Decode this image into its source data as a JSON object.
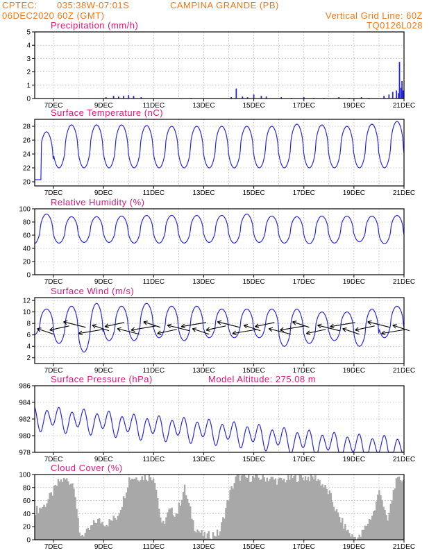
{
  "header": {
    "source": "CPTEC:",
    "coords": "035:38W-07:01S",
    "station": "CAMPINA GRANDE (PB)",
    "run": "06DEC2020 60Z (GMT)",
    "grid_note": "Vertical Grid Line: 60Z",
    "model_code": "TQ0126L028"
  },
  "date_labels": [
    "7DEC",
    "9DEC",
    "11DEC",
    "13DEC",
    "15DEC",
    "17DEC",
    "19DEC",
    "21DEC"
  ],
  "colors": {
    "header": "#f07818",
    "title": "#e0157a",
    "series": "#2727e0",
    "cloud": "#a8a8a8"
  },
  "chart_data": [
    {
      "type": "bar",
      "id": "precip",
      "title": "Precipitation (mm/h)",
      "ylim": [
        0,
        5
      ],
      "yticks": [
        0,
        1,
        2,
        3,
        4,
        5
      ],
      "xlim": [
        6.25,
        21
      ],
      "grid": true,
      "x": [
        9.1,
        9.4,
        9.6,
        9.8,
        10.0,
        10.2,
        10.5,
        12.5,
        14.1,
        14.3,
        14.55,
        14.75,
        15.0,
        15.3,
        15.5,
        16.1,
        16.5,
        17.0,
        17.4,
        17.8,
        18.4,
        18.8,
        19.3,
        19.6,
        20.2,
        20.4,
        20.55,
        20.7,
        20.78,
        20.82,
        20.88,
        20.92,
        20.96
      ],
      "values": [
        0.1,
        0.2,
        0.15,
        0.2,
        0.25,
        0.2,
        0.1,
        0.05,
        0.1,
        0.75,
        0.15,
        0.1,
        0.3,
        0.2,
        0.15,
        0.1,
        0.05,
        0.1,
        0.05,
        0.05,
        0.1,
        0.05,
        0.1,
        0.05,
        0.2,
        0.3,
        0.5,
        0.6,
        0.4,
        2.75,
        0.8,
        1.3,
        0.6
      ]
    },
    {
      "type": "line",
      "id": "temp",
      "title": "Surface Temperature (nC)",
      "ylim": [
        19.4,
        29
      ],
      "yticks": [
        20,
        22,
        24,
        26,
        28
      ],
      "xlim": [
        6.25,
        21
      ],
      "grid": true,
      "diurnal": {
        "min": [
          21,
          22,
          22,
          22,
          22,
          22,
          22,
          22,
          22,
          22,
          22,
          22,
          22,
          22,
          22
        ],
        "max": [
          27.2,
          28.2,
          28.2,
          28.2,
          28.1,
          28,
          28,
          28,
          28,
          28,
          28.3,
          28.2,
          28,
          28.3,
          28.7
        ]
      }
    },
    {
      "type": "line",
      "id": "rh",
      "title": "Relative Humidity (%)",
      "ylim": [
        0,
        100
      ],
      "yticks": [
        0,
        20,
        40,
        60,
        80,
        100
      ],
      "xlim": [
        6.25,
        21
      ],
      "grid": true,
      "diurnal": {
        "min": [
          47,
          48,
          49,
          49,
          48,
          48,
          48,
          49,
          48,
          49,
          48,
          47,
          48,
          50,
          47
        ],
        "max": [
          92,
          88,
          88,
          89,
          90,
          90,
          90,
          90,
          92,
          89,
          88,
          89,
          89,
          89,
          90
        ]
      }
    },
    {
      "type": "line",
      "id": "wind",
      "title": "Surface Wind (m/s)",
      "ylim": [
        1,
        12.5
      ],
      "yticks": [
        2,
        4,
        6,
        8,
        10,
        12
      ],
      "xlim": [
        6.25,
        21
      ],
      "grid": true,
      "diurnal": {
        "min": [
          6,
          4.5,
          3,
          5,
          5,
          5.5,
          5,
          5.5,
          5.5,
          5.5,
          4,
          4.5,
          5,
          4,
          5.5
        ],
        "max": [
          10.5,
          11,
          11.5,
          11,
          11.5,
          11,
          11,
          10.5,
          10.5,
          10.5,
          10.5,
          10,
          10,
          10.5,
          11
        ]
      },
      "arrow_times": [
        6.35,
        6.85,
        7.4,
        8.0,
        8.55,
        9.05,
        9.55,
        10.1,
        10.6,
        11.15,
        11.55,
        12.1,
        12.55,
        13.1,
        13.55,
        14.15,
        14.6,
        15.05,
        15.6,
        16.05,
        16.55,
        17.1,
        17.55,
        18.05,
        18.55,
        19.05,
        19.55,
        20.1,
        20.55
      ]
    },
    {
      "type": "line",
      "id": "pres",
      "title": "Surface Pressure (hPa)",
      "extra_label": "Model Altitude: 275.08 m",
      "ylim": [
        978,
        986
      ],
      "yticks": [
        978,
        980,
        982,
        984,
        986
      ],
      "xlim": [
        6.25,
        21
      ],
      "grid": true,
      "trend": [
        982.2,
        982.0,
        981.8,
        981.6,
        981.2,
        981.0,
        980.8,
        980.6,
        980.3,
        980.0,
        979.6,
        979.3,
        979.0,
        978.8,
        978.6,
        978.6
      ],
      "amplitude": 1.4
    },
    {
      "type": "bar",
      "id": "cloud",
      "title": "Cloud Cover (%)",
      "ylim": [
        0,
        100
      ],
      "yticks": [
        0,
        20,
        40,
        60,
        80,
        100
      ],
      "xlim": [
        6.25,
        21
      ],
      "grid": true,
      "profile_x": [
        6.25,
        6.6,
        6.9,
        7.2,
        7.5,
        7.8,
        8.0,
        8.3,
        8.7,
        9.1,
        9.5,
        9.75,
        10.0,
        10.5,
        11.0,
        11.3,
        11.6,
        11.9,
        12.2,
        12.6,
        13.0,
        13.3,
        13.6,
        14.0,
        14.3,
        14.5,
        15.0,
        15.5,
        16.0,
        16.5,
        17.0,
        17.5,
        18.0,
        18.3,
        18.6,
        18.9,
        19.2,
        19.5,
        19.8,
        20.0,
        20.3,
        20.6,
        20.8,
        21.0
      ],
      "profile_y": [
        45,
        52,
        70,
        90,
        92,
        85,
        8,
        10,
        30,
        25,
        35,
        60,
        95,
        96,
        97,
        20,
        45,
        40,
        80,
        20,
        5,
        8,
        10,
        70,
        98,
        95,
        95,
        95,
        90,
        95,
        96,
        95,
        70,
        40,
        20,
        5,
        3,
        25,
        45,
        80,
        25,
        85,
        93,
        95
      ]
    }
  ]
}
